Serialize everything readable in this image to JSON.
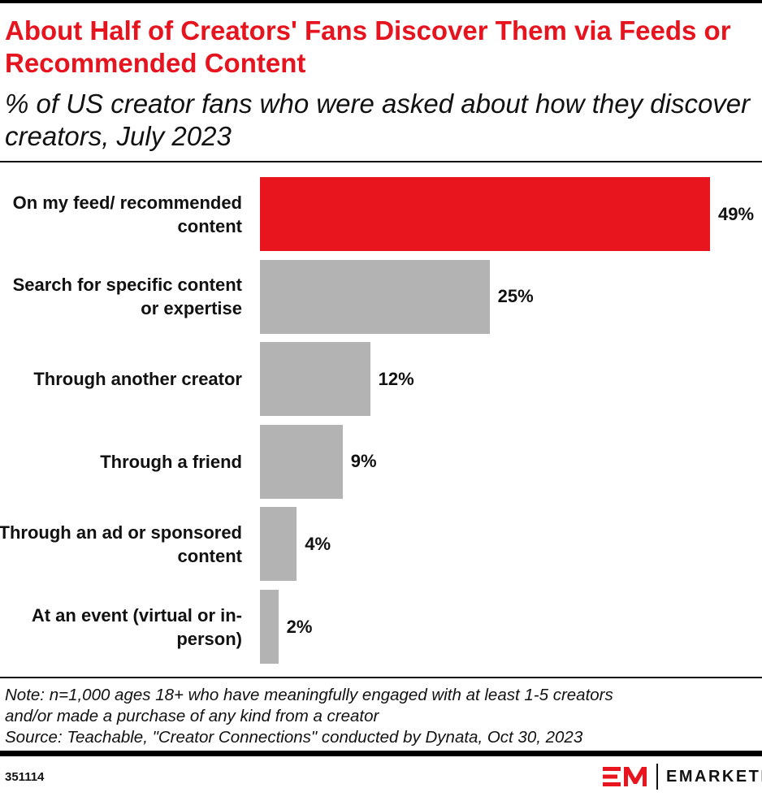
{
  "header": {
    "title": "About Half of Creators' Fans Discover Them via Feeds or Recommended Content",
    "subtitle": "% of US creator fans who were asked about how they discover creators, July 2023"
  },
  "chart_data": {
    "type": "bar",
    "orientation": "horizontal",
    "title": "About Half of Creators' Fans Discover Them via Feeds or Recommended Content",
    "subtitle": "% of US creator fans who were asked about how they discover creators, July 2023",
    "categories": [
      "On my feed/ recommended content",
      "Search for specific content or expertise",
      "Through another creator",
      "Through a friend",
      "Through an ad or sponsored content",
      "At an event (virtual or in-person)"
    ],
    "values": [
      49,
      25,
      12,
      9,
      4,
      2
    ],
    "labels": [
      "49%",
      "25%",
      "12%",
      "9%",
      "4%",
      "2%"
    ],
    "colors": [
      "#e8141e",
      "#b3b3b3",
      "#b3b3b3",
      "#b3b3b3",
      "#b3b3b3",
      "#b3b3b3"
    ],
    "xlim": [
      0,
      49
    ],
    "grid": false
  },
  "footer": {
    "note_line1": "Note: n=1,000 ages 18+ who have meaningfully engaged with at least 1-5 creators",
    "note_line2": "and/or made a purchase of any kind from a creator",
    "source": "Source: Teachable, \"Creator Connections\" conducted by Dynata, Oct 30, 2023",
    "chart_id": "351114",
    "brand": "EMARKETER",
    "brand_mark": "EM",
    "brand_color": "#e8141e"
  }
}
